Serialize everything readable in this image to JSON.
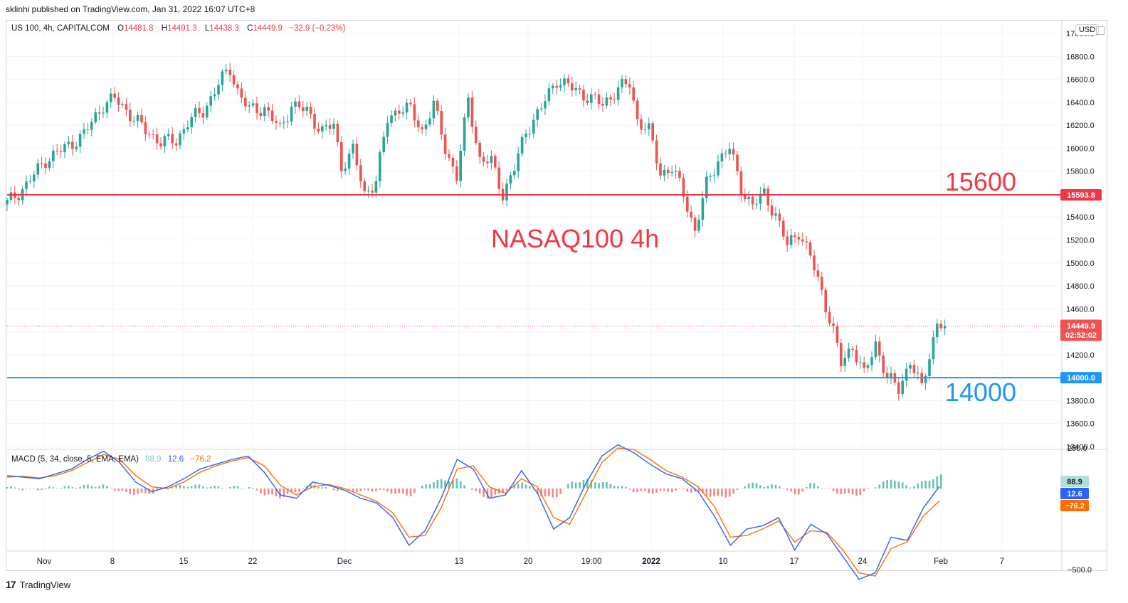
{
  "header": {
    "published": "sklinhi published on TradingView.com, Jan 31, 2022 16:07 UTC+8"
  },
  "legend": {
    "symbol": "US 100, 4h, CAPITALCOM",
    "o_label": "O",
    "o_value": "14481.8",
    "h_label": "H",
    "h_value": "14491.3",
    "l_label": "L",
    "l_value": "14438.3",
    "c_label": "C",
    "c_value": "14449.9",
    "change": "−32.9 (−0.23%)"
  },
  "currency_button": "USD",
  "annotations": {
    "resistance_text": "15600",
    "support_text": "14000",
    "title_text": "NASAQ100 4h"
  },
  "price_tags": {
    "resistance": "15593.8",
    "support": "14000.0",
    "current": "14449.9",
    "countdown": "02:52:02"
  },
  "macd_legend": {
    "name": "MACD (5, 34, close, 5, EMA, EMA)",
    "hist": "88.9",
    "macd": "12.6",
    "signal": "−76.2"
  },
  "macd_tags": {
    "hist": "88.9",
    "macd": "12.6",
    "signal": "−76.2"
  },
  "footer": {
    "logo": "17",
    "brand": "TradingView"
  },
  "colors": {
    "up": "#26a69a",
    "down": "#ef5350",
    "resistance": "#f23645",
    "support": "#2196f3",
    "macd": "#2962ff",
    "signal": "#ff6d00",
    "hist_pos": "#26a69a",
    "hist_neg": "#ef5350"
  },
  "chart_data": [
    {
      "type": "candlestick",
      "title": "",
      "price_axis_ticks": [
        17000,
        16800,
        16600,
        16400,
        16200,
        16000,
        15800,
        15600,
        15400,
        15200,
        15000,
        14800,
        14600,
        14400,
        14200,
        14000,
        13800,
        13600,
        13400
      ],
      "price_axis_tick_labels": [
        "17000.0",
        "16800.0",
        "16600.0",
        "16400.0",
        "16200.0",
        "16000.0",
        "15800.0",
        "15600.0",
        "15400.0",
        "15200.0",
        "15000.0",
        "14800.0",
        "14600.0",
        "14400.0",
        "14200.0",
        "14000.0",
        "13800.0",
        "13600.0",
        "13400.0"
      ],
      "ylim": [
        13400,
        17000
      ],
      "time_axis_labels": [
        "Nov",
        "8",
        "15",
        "22",
        "Dec",
        "13",
        "20",
        "19:00",
        "2022",
        "10",
        "17",
        "24",
        "Feb",
        "7"
      ],
      "horizontal_lines": [
        {
          "value": 15593.8,
          "label": "15600"
        },
        {
          "value": 14000.0,
          "label": "14000"
        }
      ],
      "last_price": 14449.9,
      "close_path": [
        [
          0,
          15520
        ],
        [
          5,
          15680
        ],
        [
          10,
          15900
        ],
        [
          15,
          16000
        ],
        [
          20,
          16120
        ],
        [
          25,
          16380
        ],
        [
          28,
          16430
        ],
        [
          32,
          16300
        ],
        [
          36,
          16150
        ],
        [
          40,
          16060
        ],
        [
          44,
          16060
        ],
        [
          47,
          16230
        ],
        [
          51,
          16320
        ],
        [
          55,
          16560
        ],
        [
          58,
          16690
        ],
        [
          60,
          16500
        ],
        [
          63,
          16330
        ],
        [
          67,
          16350
        ],
        [
          71,
          16160
        ],
        [
          74,
          16380
        ],
        [
          78,
          16320
        ],
        [
          82,
          16150
        ],
        [
          85,
          16200
        ],
        [
          87,
          15840
        ],
        [
          90,
          15980
        ],
        [
          93,
          15600
        ],
        [
          96,
          15720
        ],
        [
          99,
          16250
        ],
        [
          102,
          16350
        ],
        [
          105,
          16330
        ],
        [
          108,
          16150
        ],
        [
          111,
          16380
        ],
        [
          114,
          16000
        ],
        [
          117,
          15750
        ],
        [
          120,
          16420
        ],
        [
          123,
          15900
        ],
        [
          126,
          15880
        ],
        [
          129,
          15600
        ],
        [
          132,
          15820
        ],
        [
          135,
          16150
        ],
        [
          139,
          16350
        ],
        [
          143,
          16600
        ],
        [
          147,
          16520
        ],
        [
          151,
          16450
        ],
        [
          155,
          16380
        ],
        [
          159,
          16520
        ],
        [
          162,
          16560
        ],
        [
          164,
          16250
        ],
        [
          167,
          16150
        ],
        [
          170,
          15780
        ],
        [
          173,
          15830
        ],
        [
          176,
          15600
        ],
        [
          179,
          15280
        ],
        [
          182,
          15680
        ],
        [
          185,
          15900
        ],
        [
          188,
          16000
        ],
        [
          191,
          15650
        ],
        [
          194,
          15500
        ],
        [
          197,
          15600
        ],
        [
          200,
          15420
        ],
        [
          203,
          15150
        ],
        [
          206,
          15280
        ],
        [
          209,
          15050
        ],
        [
          212,
          14750
        ],
        [
          215,
          14400
        ],
        [
          217,
          14120
        ],
        [
          220,
          14280
        ],
        [
          223,
          14020
        ],
        [
          226,
          14300
        ],
        [
          229,
          14000
        ],
        [
          232,
          13900
        ],
        [
          235,
          14150
        ],
        [
          238,
          13900
        ],
        [
          240,
          14200
        ],
        [
          242,
          14480
        ],
        [
          244,
          14450
        ]
      ]
    },
    {
      "type": "line",
      "title": "MACD (5, 34, close, 5, EMA, EMA)",
      "axis_tick_labels": [
        "250.0",
        "−500.0"
      ],
      "ylim": [
        -650,
        330
      ],
      "series": [
        {
          "name": "MACD",
          "values": [
            80,
            70,
            60,
            90,
            120,
            180,
            230,
            160,
            40,
            -20,
            10,
            60,
            120,
            150,
            180,
            200,
            100,
            -40,
            -60,
            40,
            20,
            -10,
            -60,
            -90,
            -180,
            -350,
            -260,
            -60,
            180,
            120,
            -60,
            -40,
            110,
            -30,
            -250,
            -180,
            30,
            200,
            270,
            220,
            150,
            90,
            60,
            -20,
            -170,
            -350,
            -250,
            -230,
            -180,
            -380,
            -220,
            -280,
            -420,
            -560,
            -520,
            -300,
            -320,
            -120,
            12.6
          ]
        },
        {
          "name": "Signal",
          "values": [
            70,
            75,
            65,
            80,
            110,
            160,
            210,
            180,
            80,
            10,
            0,
            40,
            100,
            140,
            170,
            190,
            140,
            20,
            -40,
            10,
            25,
            0,
            -40,
            -80,
            -150,
            -300,
            -290,
            -120,
            120,
            140,
            10,
            -30,
            60,
            10,
            -180,
            -220,
            -30,
            160,
            250,
            240,
            180,
            110,
            70,
            10,
            -110,
            -300,
            -290,
            -250,
            -200,
            -330,
            -260,
            -270,
            -380,
            -520,
            -540,
            -370,
            -330,
            -170,
            -76.2
          ]
        }
      ]
    }
  ]
}
